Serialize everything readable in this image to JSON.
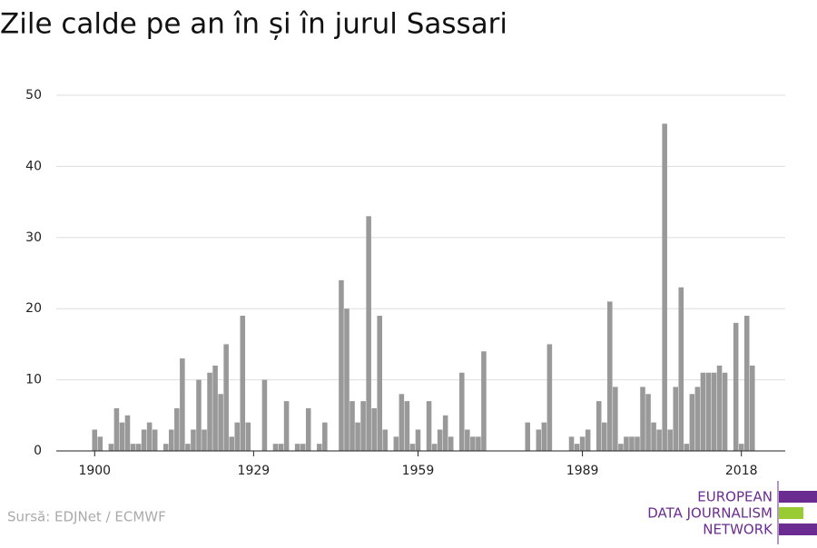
{
  "chart_data": {
    "type": "bar",
    "title": "Zile calde pe an în și în jurul Sassari",
    "x": [
      1900,
      1901,
      1902,
      1903,
      1904,
      1905,
      1906,
      1907,
      1908,
      1909,
      1910,
      1911,
      1912,
      1913,
      1914,
      1915,
      1916,
      1917,
      1918,
      1919,
      1920,
      1921,
      1922,
      1923,
      1924,
      1925,
      1926,
      1927,
      1928,
      1929,
      1930,
      1931,
      1932,
      1933,
      1934,
      1935,
      1936,
      1937,
      1938,
      1939,
      1940,
      1941,
      1942,
      1943,
      1944,
      1945,
      1946,
      1947,
      1948,
      1949,
      1950,
      1951,
      1952,
      1953,
      1954,
      1955,
      1956,
      1957,
      1958,
      1959,
      1960,
      1961,
      1962,
      1963,
      1964,
      1965,
      1966,
      1967,
      1968,
      1969,
      1970,
      1971,
      1972,
      1973,
      1974,
      1975,
      1976,
      1977,
      1978,
      1979,
      1980,
      1981,
      1982,
      1983,
      1984,
      1985,
      1986,
      1987,
      1988,
      1989,
      1990,
      1991,
      1992,
      1993,
      1994,
      1995,
      1996,
      1997,
      1998,
      1999,
      2000,
      2001,
      2002,
      2003,
      2004,
      2005,
      2006,
      2007,
      2008,
      2009,
      2010,
      2011,
      2012,
      2013,
      2014,
      2015,
      2016,
      2017,
      2018,
      2019,
      2020
    ],
    "values": [
      3,
      2,
      0,
      1,
      6,
      4,
      5,
      1,
      1,
      3,
      4,
      3,
      0,
      1,
      3,
      6,
      13,
      1,
      3,
      10,
      3,
      11,
      12,
      8,
      15,
      2,
      4,
      19,
      4,
      0,
      0,
      10,
      0,
      1,
      1,
      7,
      0,
      1,
      1,
      6,
      0,
      1,
      4,
      0,
      0,
      24,
      20,
      7,
      4,
      7,
      33,
      6,
      19,
      3,
      0,
      2,
      8,
      7,
      1,
      3,
      0,
      7,
      1,
      3,
      5,
      2,
      0,
      11,
      3,
      2,
      2,
      14,
      0,
      0,
      0,
      0,
      0,
      0,
      0,
      4,
      0,
      3,
      4,
      15,
      0,
      0,
      0,
      2,
      1,
      2,
      3,
      0,
      7,
      4,
      21,
      9,
      1,
      2,
      2,
      2,
      9,
      8,
      4,
      3,
      46,
      3,
      9,
      23,
      1,
      8,
      9,
      11,
      11,
      11,
      12,
      11,
      0,
      18,
      1,
      19,
      12
    ],
    "color": "#999999",
    "xlim": [
      1893,
      2026
    ],
    "xticks": [
      1900,
      1929,
      1959,
      1989,
      2018
    ],
    "ylim": [
      0,
      50
    ],
    "yticks": [
      0,
      10,
      20,
      30,
      40,
      50
    ],
    "grid": true,
    "source": "Sursă: EDJNet / ECMWF",
    "logo": [
      "EUROPEAN",
      "DATA JOURNALISM",
      "NETWORK"
    ]
  }
}
